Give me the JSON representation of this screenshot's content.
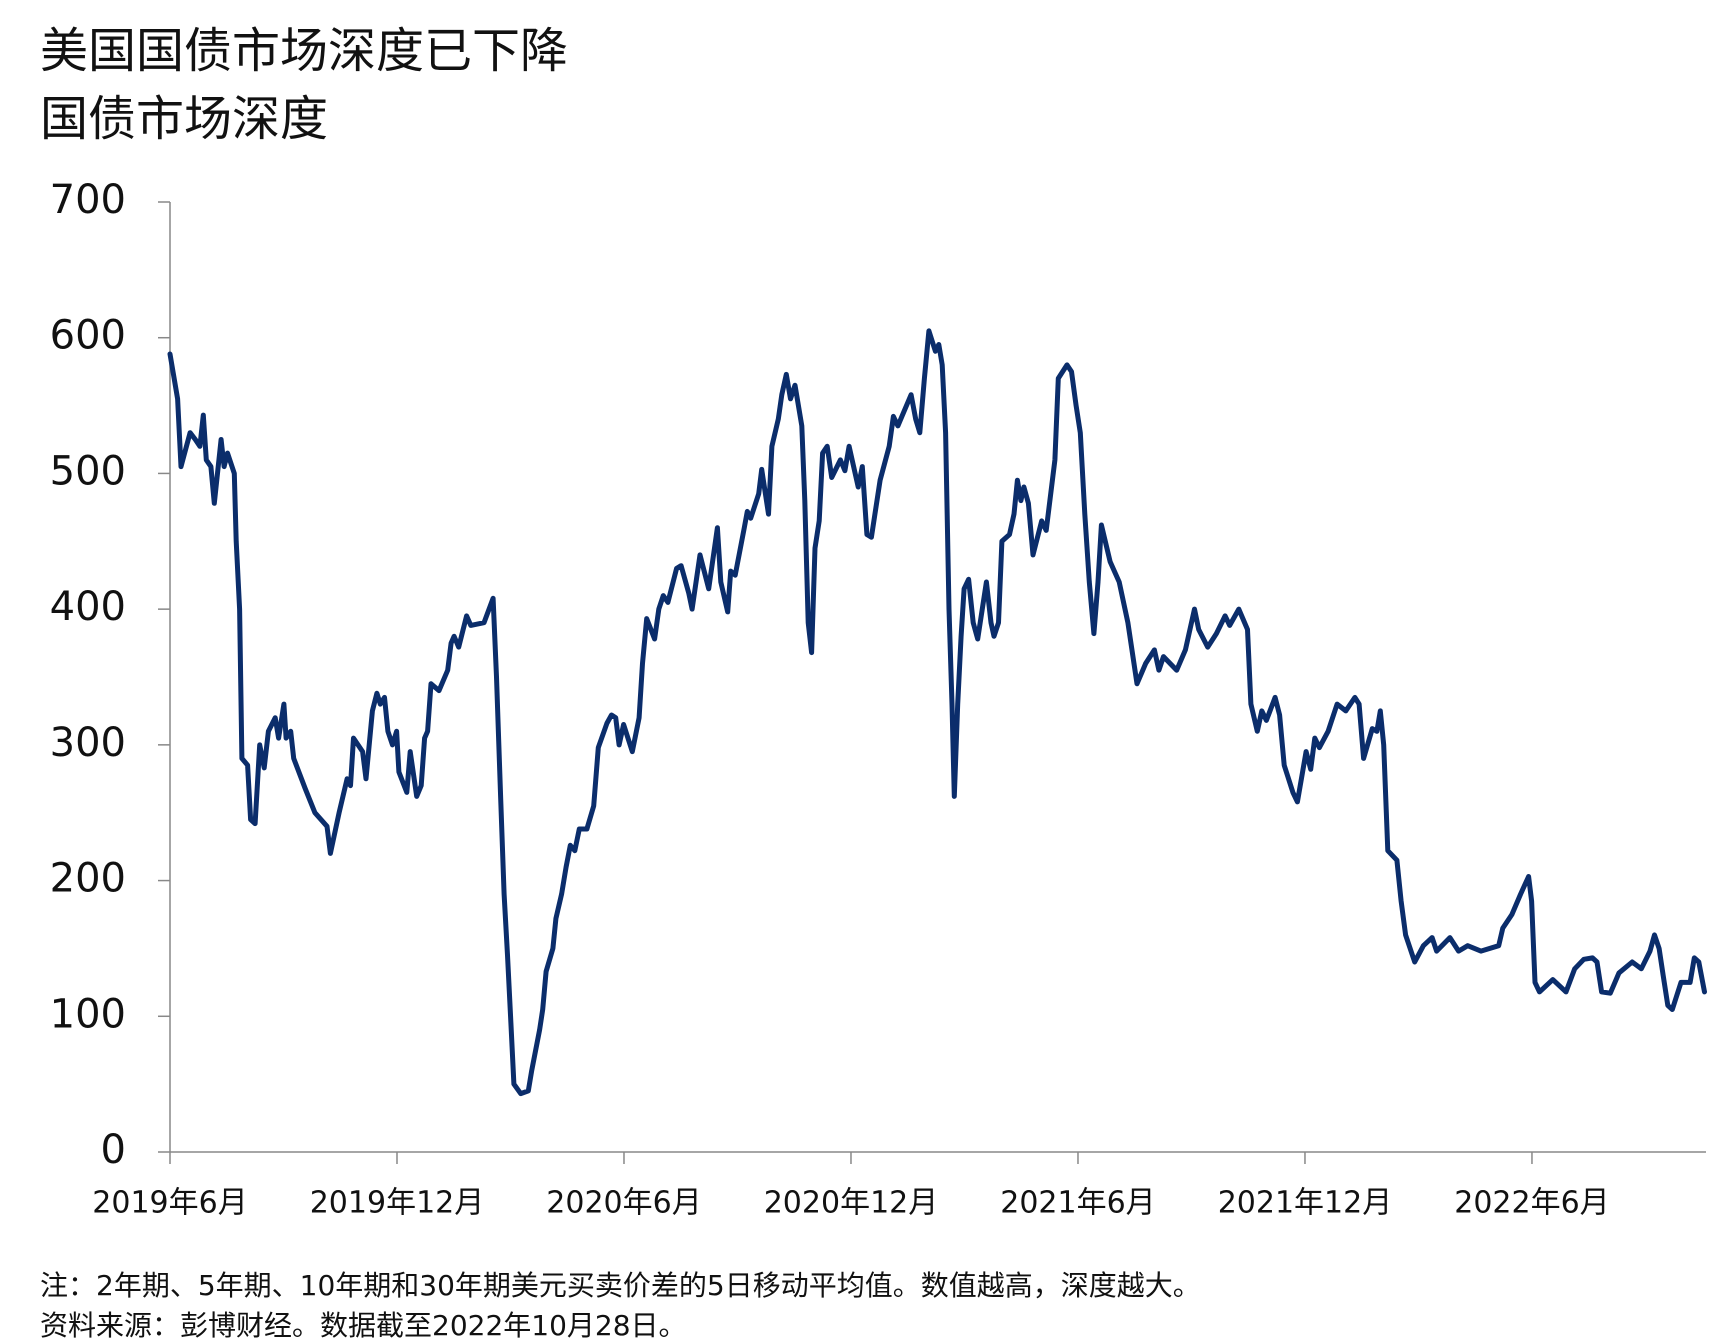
{
  "chart_data": {
    "type": "line",
    "title": "美国国债市场深度已下降",
    "subtitle": "国债市场深度",
    "notes": [
      "注：2年期、5年期、10年期和30年期美元买卖价差的5日移动平均值。数值越高，深度越大。",
      "资料来源：彭博财经。数据截至2022年10月28日。"
    ],
    "xlim": [
      0,
      40.6
    ],
    "xticks": [
      {
        "value": 0,
        "label": "2019年6月"
      },
      {
        "value": 6,
        "label": "2019年12月"
      },
      {
        "value": 12,
        "label": "2020年6月"
      },
      {
        "value": 18,
        "label": "2020年12月"
      },
      {
        "value": 24,
        "label": "2021年6月"
      },
      {
        "value": 30,
        "label": "2021年12月"
      },
      {
        "value": 36,
        "label": "2022年6月"
      }
    ],
    "ylim": [
      0,
      700
    ],
    "yticks": [
      0,
      100,
      200,
      300,
      400,
      500,
      600,
      700
    ],
    "grid": false,
    "x": [
      0,
      0.2,
      0.29,
      0.53,
      0.67,
      0.79,
      0.88,
      0.96,
      1.08,
      1.17,
      1.35,
      1.43,
      1.52,
      1.7,
      1.75,
      1.84,
      1.9,
      2.05,
      2.13,
      2.25,
      2.37,
      2.49,
      2.6,
      2.78,
      2.87,
      3.01,
      3.07,
      3.19,
      3.27,
      3.57,
      3.83,
      4.15,
      4.24,
      4.47,
      4.68,
      4.77,
      4.85,
      5.09,
      5.18,
      5.35,
      5.47,
      5.56,
      5.67,
      5.76,
      5.88,
      5.99,
      6.05,
      6.26,
      6.35,
      6.52,
      6.64,
      6.73,
      6.81,
      6.9,
      7.11,
      7.34,
      7.43,
      7.51,
      7.63,
      7.84,
      7.95,
      8.3,
      8.54,
      8.63,
      8.74,
      8.83,
      8.92,
      9.01,
      9.09,
      9.27,
      9.47,
      9.56,
      9.77,
      9.85,
      9.94,
      10.12,
      10.2,
      10.35,
      10.47,
      10.58,
      10.7,
      10.82,
      11.02,
      11.2,
      11.32,
      11.55,
      11.67,
      11.78,
      11.87,
      11.99,
      12.22,
      12.4,
      12.49,
      12.6,
      12.81,
      12.92,
      13.04,
      13.16,
      13.39,
      13.51,
      13.71,
      13.8,
      14.01,
      14.24,
      14.47,
      14.56,
      14.74,
      14.82,
      14.94,
      15.18,
      15.26,
      15.35,
      15.56,
      15.64,
      15.82,
      15.91,
      16.08,
      16.17,
      16.29,
      16.4,
      16.52,
      16.7,
      16.78,
      16.87,
      16.96,
      17.05,
      17.16,
      17.25,
      17.37,
      17.49,
      17.72,
      17.84,
      17.95,
      18.19,
      18.3,
      18.42,
      18.54,
      18.77,
      19.01,
      19.12,
      19.24,
      19.59,
      19.71,
      19.82,
      19.94,
      20.06,
      20.23,
      20.32,
      20.41,
      20.5,
      20.59,
      20.67,
      20.73,
      20.82,
      20.91,
      20.99,
      21.11,
      21.23,
      21.35,
      21.58,
      21.7,
      21.78,
      21.9,
      21.99,
      22.19,
      22.31,
      22.4,
      22.49,
      22.57,
      22.69,
      22.81,
      23.04,
      23.16,
      23.39,
      23.48,
      23.71,
      23.83,
      23.95,
      24.06,
      24.18,
      24.3,
      24.42,
      24.53,
      24.62,
      24.85,
      25.09,
      25.32,
      25.56,
      25.79,
      26.02,
      26.14,
      26.26,
      26.61,
      26.84,
      27.08,
      27.19,
      27.43,
      27.66,
      27.89,
      28.01,
      28.25,
      28.48,
      28.57,
      28.74,
      28.86,
      28.98,
      29.21,
      29.33,
      29.45,
      29.68,
      29.8,
      30.03,
      30.15,
      30.26,
      30.38,
      30.61,
      30.85,
      31.08,
      31.32,
      31.43,
      31.55,
      31.78,
      31.9,
      31.99,
      32.08,
      32.19,
      32.43,
      32.54,
      32.66,
      32.9,
      33.13,
      33.36,
      33.48,
      33.83,
      34.06,
      34.3,
      34.65,
      35.12,
      35.23,
      35.47,
      35.7,
      35.91,
      35.99,
      36.08,
      36.2,
      36.55,
      36.9,
      37.13,
      37.37,
      37.6,
      37.72,
      37.84,
      38.07,
      38.3,
      38.65,
      38.89,
      39.12,
      39.24,
      39.36,
      39.47,
      39.59,
      39.71,
      39.94,
      40.18,
      40.29,
      40.41,
      40.56
    ],
    "series": [
      {
        "name": "国债市场深度",
        "color": "#0b2d6b",
        "values": [
          588,
          555,
          505,
          530,
          525,
          520,
          543,
          510,
          505,
          478,
          525,
          505,
          515,
          500,
          450,
          400,
          290,
          285,
          245,
          242,
          300,
          283,
          310,
          320,
          305,
          330,
          305,
          310,
          290,
          268,
          250,
          240,
          220,
          250,
          275,
          270,
          305,
          295,
          275,
          325,
          338,
          330,
          335,
          310,
          300,
          310,
          280,
          265,
          295,
          262,
          270,
          305,
          310,
          345,
          340,
          355,
          375,
          380,
          372,
          395,
          388,
          390,
          408,
          350,
          260,
          190,
          145,
          95,
          50,
          43,
          45,
          60,
          90,
          105,
          133,
          150,
          172,
          190,
          210,
          226,
          222,
          238,
          238,
          255,
          298,
          316,
          322,
          320,
          300,
          315,
          295,
          320,
          360,
          393,
          378,
          400,
          410,
          405,
          430,
          432,
          412,
          400,
          440,
          415,
          460,
          420,
          398,
          428,
          425,
          460,
          472,
          467,
          485,
          503,
          470,
          520,
          540,
          558,
          573,
          555,
          565,
          535,
          480,
          390,
          368,
          445,
          465,
          515,
          520,
          497,
          510,
          502,
          520,
          490,
          505,
          455,
          453,
          495,
          520,
          542,
          535,
          558,
          540,
          530,
          570,
          605,
          590,
          595,
          580,
          530,
          400,
          330,
          262,
          330,
          380,
          415,
          422,
          390,
          378,
          420,
          390,
          380,
          390,
          450,
          455,
          470,
          495,
          480,
          490,
          478,
          440,
          465,
          458,
          510,
          570,
          580,
          575,
          550,
          530,
          470,
          420,
          382,
          420,
          462,
          435,
          420,
          390,
          345,
          360,
          370,
          355,
          365,
          355,
          370,
          400,
          385,
          372,
          382,
          395,
          388,
          400,
          385,
          330,
          310,
          325,
          318,
          335,
          322,
          285,
          265,
          258,
          295,
          282,
          305,
          298,
          310,
          330,
          325,
          335,
          330,
          290,
          312,
          310,
          325,
          300,
          222,
          215,
          185,
          160,
          140,
          152,
          158,
          148,
          158,
          148,
          152,
          148,
          152,
          165,
          175,
          190,
          203,
          185,
          125,
          118,
          127,
          118,
          135,
          142,
          143,
          140,
          118,
          117,
          132,
          140,
          135,
          148,
          160,
          150,
          130,
          108,
          105,
          125,
          125,
          143,
          140,
          118
        ]
      }
    ]
  }
}
